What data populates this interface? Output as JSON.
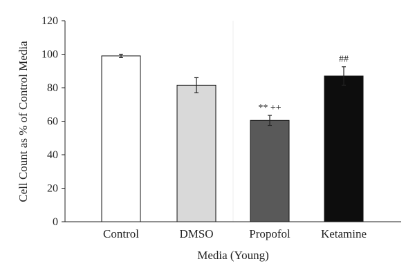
{
  "chart_data": {
    "type": "bar",
    "categories": [
      "Control",
      "DMSO",
      "Propofol",
      "Ketamine"
    ],
    "values": [
      99,
      81.5,
      60.5,
      87
    ],
    "errors": [
      1,
      4.5,
      3,
      5.5
    ],
    "annotations": [
      "",
      "",
      "** ++",
      "##"
    ],
    "bar_colors": [
      "#ffffff",
      "#d9d9d9",
      "#595959",
      "#0d0d0d"
    ],
    "xlabel": "Media (Young)",
    "ylabel": "Cell Count as % of Control Media",
    "ylim": [
      0,
      120
    ],
    "yticks": [
      0,
      20,
      40,
      60,
      80,
      100,
      120
    ],
    "grid": false,
    "legend": "none"
  }
}
